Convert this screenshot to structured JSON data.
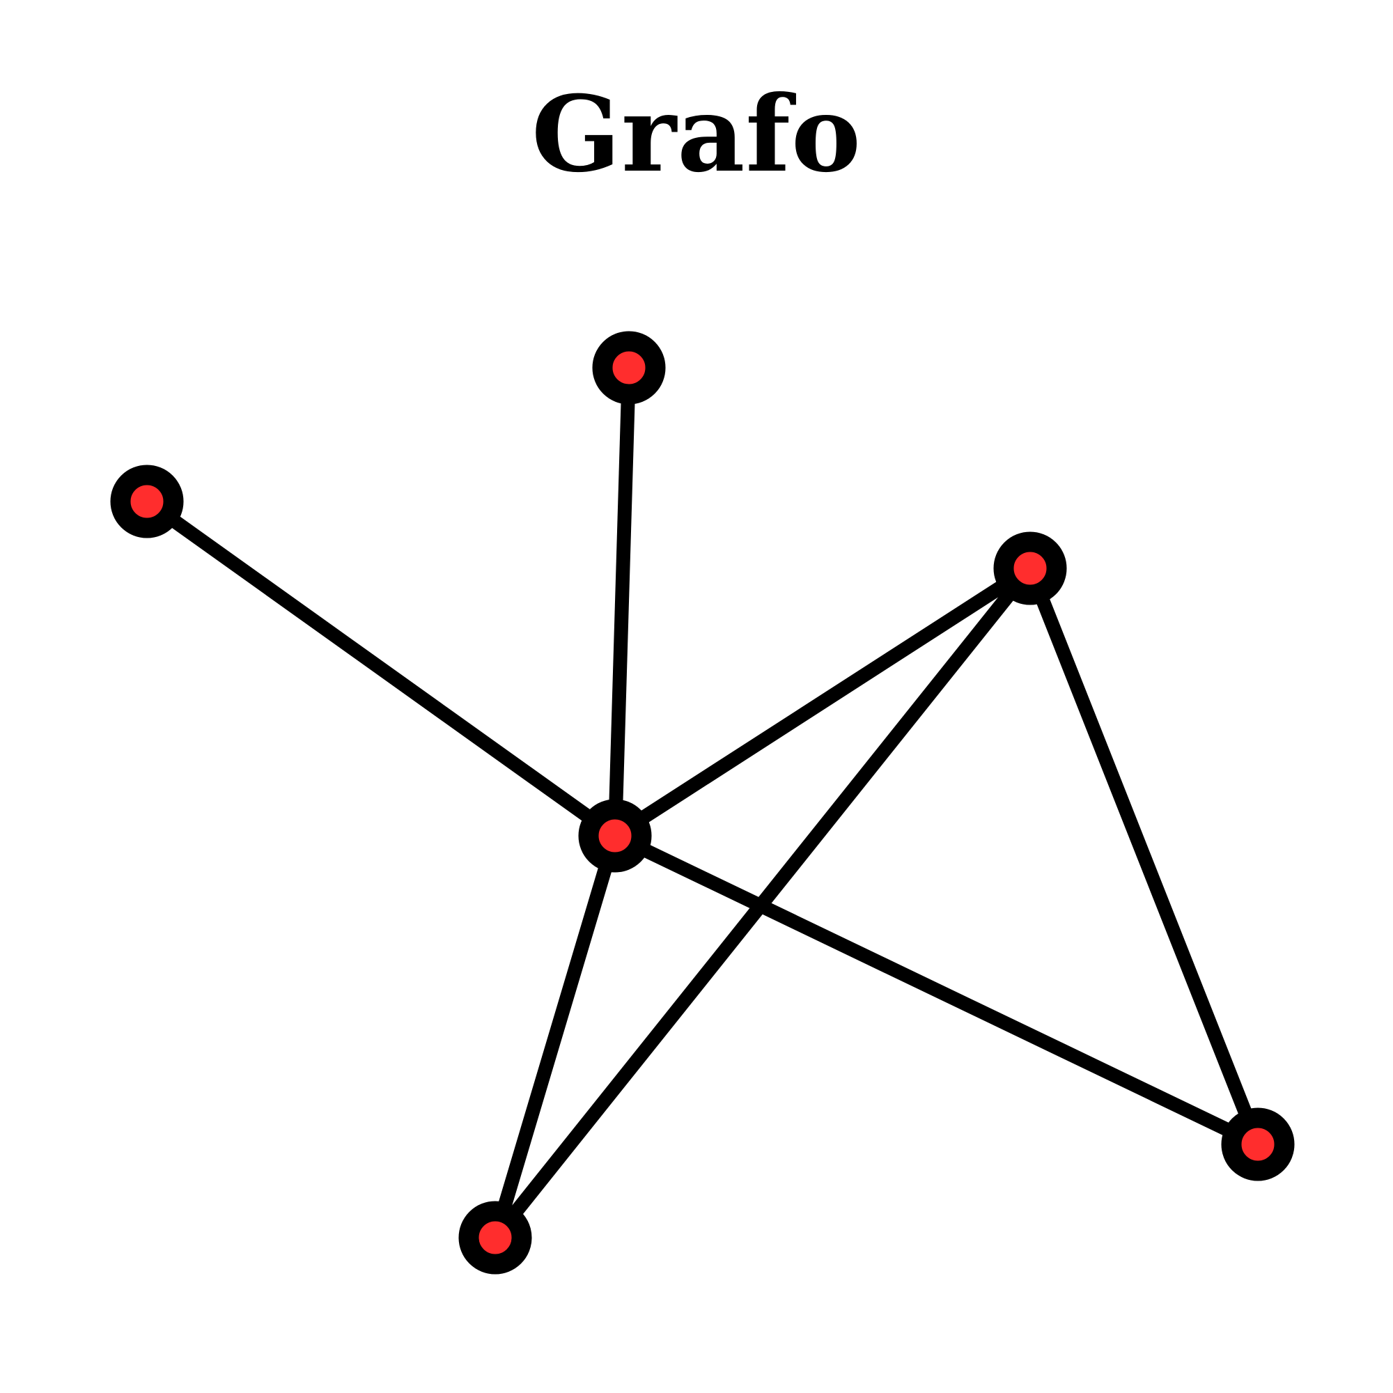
{
  "title": "Grafo",
  "colors": {
    "node_fill": "#ff2d2d",
    "node_stroke": "#000000",
    "edge": "#000000",
    "background": "#ffffff"
  },
  "graph": {
    "nodes": [
      {
        "id": "n-top"
      },
      {
        "id": "n-left"
      },
      {
        "id": "n-center"
      },
      {
        "id": "n-upper-right"
      },
      {
        "id": "n-bottom"
      },
      {
        "id": "n-lower-right"
      }
    ],
    "edges": [
      {
        "from": "n-top",
        "to": "n-center"
      },
      {
        "from": "n-left",
        "to": "n-center"
      },
      {
        "from": "n-center",
        "to": "n-upper-right"
      },
      {
        "from": "n-center",
        "to": "n-lower-right"
      },
      {
        "from": "n-center",
        "to": "n-bottom"
      },
      {
        "from": "n-upper-right",
        "to": "n-bottom"
      },
      {
        "from": "n-upper-right",
        "to": "n-lower-right"
      }
    ]
  }
}
